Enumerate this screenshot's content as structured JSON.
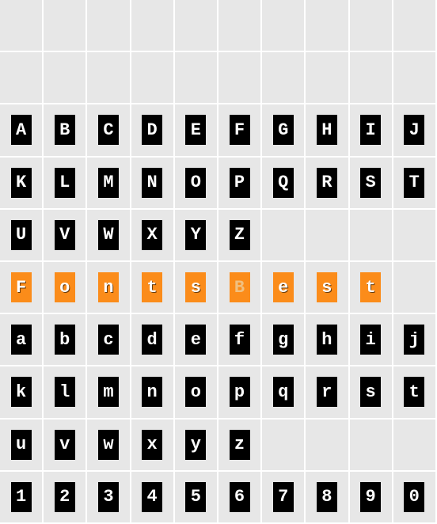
{
  "specimen": {
    "columns": 10,
    "cell_bg": "#e7e7e7",
    "cell_border": "#ffffff",
    "tile": {
      "width": 26,
      "height": 38,
      "font_family": "Courier New",
      "font_size": 22
    },
    "colors": {
      "black_bg": "#000000",
      "black_fg": "#ffffff",
      "orange_bg": "#fb8c1a",
      "orange_fg": "#ffffff",
      "orange_faint_fg": "#f0c080"
    },
    "rows": [
      {
        "cells": [
          "",
          "",
          "",
          "",
          "",
          "",
          "",
          "",
          "",
          ""
        ]
      },
      {
        "cells": [
          "",
          "",
          "",
          "",
          "",
          "",
          "",
          "",
          "",
          ""
        ]
      },
      {
        "style": "black",
        "cells": [
          "A",
          "B",
          "C",
          "D",
          "E",
          "F",
          "G",
          "H",
          "I",
          "J"
        ]
      },
      {
        "style": "black",
        "cells": [
          "K",
          "L",
          "M",
          "N",
          "O",
          "P",
          "Q",
          "R",
          "S",
          "T"
        ]
      },
      {
        "style": "black",
        "cells": [
          "U",
          "V",
          "W",
          "X",
          "Y",
          "Z",
          "",
          "",
          "",
          ""
        ]
      },
      {
        "style": "orange",
        "cells": [
          "F",
          "o",
          "n",
          "t",
          "s",
          "B",
          "e",
          "s",
          "t",
          ""
        ],
        "faint": [
          false,
          false,
          false,
          false,
          false,
          true,
          false,
          false,
          false,
          false
        ]
      },
      {
        "style": "black",
        "cells": [
          "a",
          "b",
          "c",
          "d",
          "e",
          "f",
          "g",
          "h",
          "i",
          "j"
        ]
      },
      {
        "style": "black",
        "cells": [
          "k",
          "l",
          "m",
          "n",
          "o",
          "p",
          "q",
          "r",
          "s",
          "t"
        ]
      },
      {
        "style": "black",
        "cells": [
          "u",
          "v",
          "w",
          "x",
          "y",
          "z",
          "",
          "",
          "",
          ""
        ]
      },
      {
        "style": "black",
        "cells": [
          "1",
          "2",
          "3",
          "4",
          "5",
          "6",
          "7",
          "8",
          "9",
          "0"
        ]
      }
    ]
  }
}
